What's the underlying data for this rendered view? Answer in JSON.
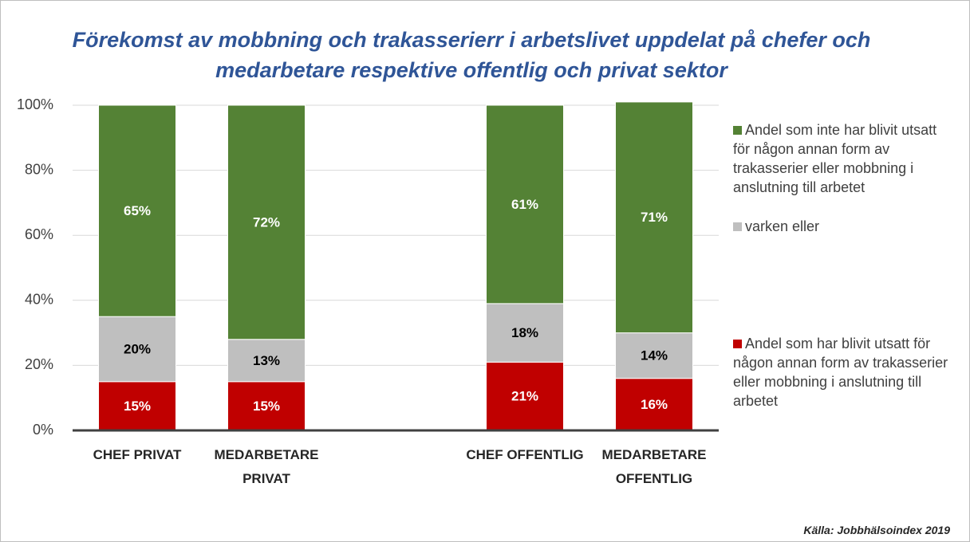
{
  "chart_data": {
    "type": "stacked_bar",
    "title": "Förekomst av mobbning och trakasserierr i arbetslivet uppdelat på chefer och medarbetare respektive offentlig och privat sektor",
    "categories": [
      "CHEF PRIVAT",
      "MEDARBETARE PRIVAT",
      null,
      "CHEF OFFENTLIG",
      "MEDARBETARE OFFENTLIG"
    ],
    "series": [
      {
        "name": "Andel som har blivit utsatt för någon annan form av trakasserier eller mobbning i anslutning till arbetet",
        "color": "#c00000",
        "label_color": "#ffffff",
        "values": [
          15,
          15,
          null,
          21,
          16
        ],
        "value_labels": [
          "15%",
          "15%",
          null,
          "21%",
          "16%"
        ]
      },
      {
        "name": "varken eller",
        "color": "#bfbfbf",
        "label_color": "#000000",
        "values": [
          20,
          13,
          null,
          18,
          14
        ],
        "value_labels": [
          "20%",
          "13%",
          null,
          "18%",
          "14%"
        ]
      },
      {
        "name": "Andel som inte  har blivit utsatt för någon annan form av trakasserier eller mobbning i anslutning till arbetet",
        "color": "#548235",
        "label_color": "#ffffff",
        "values": [
          65,
          72,
          null,
          61,
          71
        ],
        "value_labels": [
          "65%",
          "72%",
          null,
          "61%",
          "71%"
        ]
      }
    ],
    "ylim": [
      0,
      100
    ],
    "yticks": [
      {
        "value": 0,
        "label": "0%"
      },
      {
        "value": 20,
        "label": "20%"
      },
      {
        "value": 40,
        "label": "40%"
      },
      {
        "value": 60,
        "label": "60%"
      },
      {
        "value": 80,
        "label": "80%"
      },
      {
        "value": 100,
        "label": "100%"
      }
    ],
    "grid": true,
    "legend": "right",
    "source": "Källa: Jobbhälsoindex 2019"
  }
}
